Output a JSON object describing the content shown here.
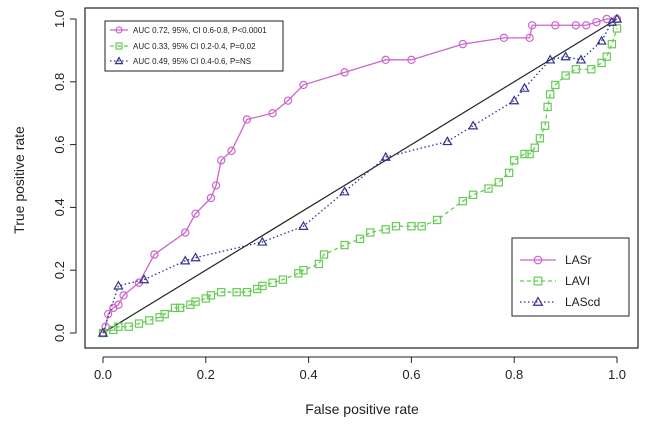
{
  "chart_data": {
    "type": "line",
    "title": "",
    "xlabel": "False positive rate",
    "ylabel": "True positive rate",
    "xlim": [
      0,
      1
    ],
    "ylim": [
      0,
      1
    ],
    "x_ticks": [
      "0.0",
      "0.2",
      "0.4",
      "0.6",
      "0.8",
      "1.0"
    ],
    "y_ticks": [
      "0.0",
      "0.2",
      "0.4",
      "0.6",
      "0.8",
      "1.0"
    ],
    "grid": false,
    "reference_line": {
      "x": [
        0,
        1
      ],
      "y": [
        0,
        1
      ],
      "color": "#222222"
    },
    "annotation_legend": {
      "placement": "top-left",
      "entries": [
        {
          "label": "AUC 0.72, 95%, CI 0.6-0.8, P<0.0001",
          "color": "#cc66cc",
          "marker": "circle",
          "linestyle": "solid"
        },
        {
          "label": "AUC 0.33, 95% CI 0.2-0.4, P=0.02",
          "color": "#66cc55",
          "marker": "square",
          "linestyle": "dashed"
        },
        {
          "label": "AUC 0.49, 95% CI 0.4-0.6, P=NS",
          "color": "#33338f",
          "marker": "triangle",
          "linestyle": "dotted"
        }
      ]
    },
    "series_legend": {
      "placement": "bottom-right",
      "entries": [
        {
          "label": "LASr",
          "color": "#cc66cc",
          "marker": "circle",
          "linestyle": "solid"
        },
        {
          "label": "LAVI",
          "color": "#66cc55",
          "marker": "square",
          "linestyle": "dashed"
        },
        {
          "label": "LAScd",
          "color": "#33338f",
          "marker": "triangle",
          "linestyle": "dotted"
        }
      ]
    },
    "series": [
      {
        "name": "LASr",
        "color": "#cc66cc",
        "marker": "circle",
        "linestyle": "solid",
        "x": [
          0,
          0.005,
          0.01,
          0.02,
          0.03,
          0.04,
          0.07,
          0.1,
          0.16,
          0.18,
          0.21,
          0.22,
          0.23,
          0.25,
          0.28,
          0.33,
          0.36,
          0.39,
          0.47,
          0.55,
          0.6,
          0.7,
          0.78,
          0.83,
          0.835,
          0.88,
          0.92,
          0.94,
          0.96,
          0.98,
          1.0
        ],
        "y": [
          0,
          0.02,
          0.06,
          0.08,
          0.09,
          0.12,
          0.16,
          0.25,
          0.32,
          0.38,
          0.43,
          0.47,
          0.55,
          0.58,
          0.68,
          0.7,
          0.74,
          0.79,
          0.83,
          0.87,
          0.87,
          0.92,
          0.94,
          0.94,
          0.98,
          0.98,
          0.98,
          0.98,
          0.99,
          1.0,
          1.0
        ]
      },
      {
        "name": "LAVI",
        "color": "#66cc55",
        "marker": "square",
        "linestyle": "dashed",
        "x": [
          0,
          0.02,
          0.03,
          0.05,
          0.07,
          0.09,
          0.11,
          0.12,
          0.14,
          0.15,
          0.17,
          0.18,
          0.2,
          0.21,
          0.23,
          0.26,
          0.28,
          0.3,
          0.31,
          0.33,
          0.35,
          0.38,
          0.39,
          0.42,
          0.43,
          0.47,
          0.5,
          0.52,
          0.55,
          0.57,
          0.6,
          0.62,
          0.65,
          0.7,
          0.72,
          0.75,
          0.77,
          0.79,
          0.8,
          0.82,
          0.83,
          0.84,
          0.85,
          0.86,
          0.865,
          0.87,
          0.88,
          0.9,
          0.92,
          0.95,
          0.97,
          0.98,
          0.99,
          1.0
        ],
        "y": [
          0,
          0.01,
          0.02,
          0.02,
          0.03,
          0.04,
          0.05,
          0.06,
          0.08,
          0.08,
          0.09,
          0.1,
          0.11,
          0.12,
          0.13,
          0.13,
          0.13,
          0.14,
          0.15,
          0.16,
          0.17,
          0.19,
          0.2,
          0.22,
          0.25,
          0.28,
          0.3,
          0.32,
          0.33,
          0.34,
          0.34,
          0.34,
          0.36,
          0.42,
          0.44,
          0.46,
          0.48,
          0.51,
          0.55,
          0.57,
          0.57,
          0.59,
          0.62,
          0.66,
          0.72,
          0.76,
          0.79,
          0.82,
          0.84,
          0.84,
          0.86,
          0.88,
          0.92,
          0.97
        ]
      },
      {
        "name": "LAScd",
        "color": "#33338f",
        "marker": "triangle",
        "linestyle": "dotted",
        "x": [
          0,
          0.03,
          0.08,
          0.16,
          0.18,
          0.31,
          0.39,
          0.47,
          0.55,
          0.67,
          0.72,
          0.8,
          0.82,
          0.87,
          0.9,
          0.93,
          0.97,
          0.99,
          1.0
        ],
        "y": [
          0,
          0.15,
          0.17,
          0.23,
          0.24,
          0.29,
          0.34,
          0.45,
          0.56,
          0.61,
          0.66,
          0.74,
          0.78,
          0.87,
          0.88,
          0.87,
          0.93,
          0.99,
          1.0
        ]
      }
    ]
  }
}
